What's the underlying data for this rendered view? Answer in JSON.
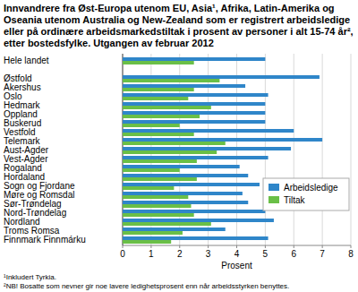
{
  "chart_data": {
    "type": "bar",
    "orientation": "horizontal",
    "title": "Innvandrere fra Øst-Europa utenom EU, Asia¹, Afrika, Latin-Amerika og Oseania utenom Australia og New-Zealand som er registrert arbeidsledige eller på ordinære arbeidsmarkedstiltak i prosent av personer i alt 15-74 år², etter bostedsfylke. Utgangen av februar 2012",
    "x_label": "Prosent",
    "notes": [
      "¹Inkludert Tyrkia.",
      "²NB! Bosatte som nevner gir noe lavere ledighetsprosent enn når arbeidsstyrken benyttes."
    ],
    "categories": [
      "Hele landet",
      "Østfold",
      "Akershus",
      "Oslo",
      "Hedmark",
      "Oppland",
      "Buskerud",
      "Vestfold",
      "Telemark",
      "Aust-Agder",
      "Vest-Agder",
      "Rogaland",
      "Hordaland",
      "Sogn og Fjordane",
      "Møre og Romsdal",
      "Sør-Trøndelag",
      "Nord-Trøndelag",
      "Nordland",
      "Troms Romsa",
      "Finnmark Finnmárku"
    ],
    "series": [
      {
        "name": "Arbeidsledige",
        "color": "#2f86c9",
        "values": [
          5.0,
          6.9,
          4.3,
          5.1,
          5.0,
          5.0,
          5.0,
          6.0,
          7.0,
          5.9,
          5.1,
          4.1,
          4.4,
          4.8,
          4.2,
          4.4,
          5.0,
          5.3,
          3.6,
          5.1
        ]
      },
      {
        "name": "Tiltak",
        "color": "#6abf47",
        "values": [
          2.5,
          3.4,
          2.5,
          2.3,
          3.1,
          2.7,
          2.0,
          2.5,
          3.6,
          3.3,
          2.6,
          2.0,
          2.6,
          1.8,
          2.3,
          2.4,
          2.5,
          3.1,
          2.1,
          1.7
        ]
      }
    ],
    "xlim": [
      0,
      8
    ],
    "xticks": [
      0,
      1,
      2,
      3,
      4,
      5,
      6,
      7,
      8
    ],
    "grid": true,
    "legend": "right"
  }
}
